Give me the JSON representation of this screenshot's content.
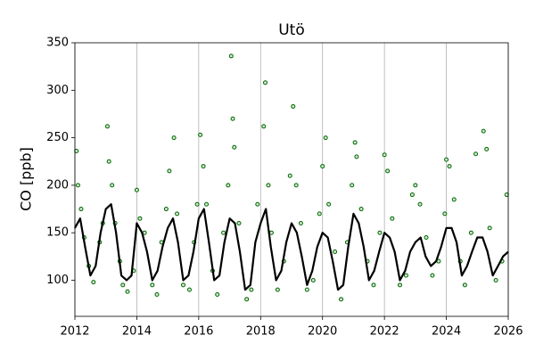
{
  "chart_data": {
    "type": "scatter",
    "title": "Utö",
    "y_label": "CO [ppb]",
    "xlim": [
      2012,
      2026
    ],
    "ylim": [
      62,
      350
    ],
    "xticks": [
      2012,
      2014,
      2016,
      2018,
      2020,
      2022,
      2024,
      2026
    ],
    "yticks": [
      100,
      150,
      200,
      250,
      300,
      350
    ],
    "grid_x": true,
    "series": [
      {
        "type": "scatter",
        "color": "#006400",
        "x": [
          2012.05,
          2012.1,
          2012.2,
          2012.3,
          2012.45,
          2012.6,
          2012.8,
          2012.9,
          2013.05,
          2013.1,
          2013.2,
          2013.3,
          2013.45,
          2013.55,
          2013.7,
          2013.9,
          2014.0,
          2014.1,
          2014.25,
          2014.5,
          2014.65,
          2014.8,
          2014.95,
          2015.05,
          2015.2,
          2015.3,
          2015.5,
          2015.7,
          2015.85,
          2015.95,
          2016.05,
          2016.15,
          2016.25,
          2016.45,
          2016.6,
          2016.8,
          2016.95,
          2017.05,
          2017.1,
          2017.15,
          2017.3,
          2017.55,
          2017.7,
          2017.9,
          2018.15,
          2018.1,
          2018.25,
          2018.35,
          2018.55,
          2018.75,
          2018.95,
          2019.05,
          2019.15,
          2019.3,
          2019.5,
          2019.7,
          2019.9,
          2020.0,
          2020.1,
          2020.2,
          2020.4,
          2020.6,
          2020.8,
          2020.95,
          2021.05,
          2021.1,
          2021.25,
          2021.45,
          2021.65,
          2021.85,
          2022.0,
          2022.1,
          2022.25,
          2022.5,
          2022.7,
          2022.9,
          2023.0,
          2023.15,
          2023.35,
          2023.55,
          2023.75,
          2023.95,
          2024.0,
          2024.1,
          2024.25,
          2024.45,
          2024.6,
          2024.8,
          2024.95,
          2025.2,
          2025.3,
          2025.4,
          2025.6,
          2025.8,
          2025.95
        ],
        "values": [
          236,
          200,
          175,
          145,
          115,
          98,
          140,
          160,
          262,
          225,
          200,
          160,
          120,
          95,
          88,
          110,
          195,
          165,
          150,
          95,
          85,
          140,
          175,
          215,
          250,
          170,
          95,
          90,
          140,
          180,
          253,
          220,
          180,
          110,
          85,
          150,
          200,
          336,
          270,
          240,
          160,
          80,
          90,
          180,
          308,
          262,
          200,
          150,
          90,
          120,
          210,
          283,
          200,
          160,
          90,
          100,
          170,
          220,
          250,
          180,
          130,
          80,
          140,
          200,
          245,
          230,
          175,
          120,
          95,
          150,
          232,
          215,
          165,
          95,
          105,
          190,
          200,
          180,
          145,
          105,
          120,
          170,
          227,
          220,
          185,
          120,
          95,
          150,
          233,
          257,
          238,
          155,
          100,
          120,
          190
        ]
      },
      {
        "type": "line",
        "color": "#000000",
        "x": [
          2012.0,
          2012.17,
          2012.33,
          2012.5,
          2012.67,
          2012.83,
          2013.0,
          2013.17,
          2013.33,
          2013.5,
          2013.67,
          2013.83,
          2014.0,
          2014.17,
          2014.33,
          2014.5,
          2014.67,
          2014.83,
          2015.0,
          2015.17,
          2015.33,
          2015.5,
          2015.67,
          2015.83,
          2016.0,
          2016.17,
          2016.33,
          2016.5,
          2016.67,
          2016.83,
          2017.0,
          2017.17,
          2017.33,
          2017.5,
          2017.67,
          2017.83,
          2018.0,
          2018.17,
          2018.33,
          2018.5,
          2018.67,
          2018.83,
          2019.0,
          2019.17,
          2019.33,
          2019.5,
          2019.67,
          2019.83,
          2020.0,
          2020.17,
          2020.33,
          2020.5,
          2020.67,
          2020.83,
          2021.0,
          2021.17,
          2021.33,
          2021.5,
          2021.67,
          2021.83,
          2022.0,
          2022.17,
          2022.33,
          2022.5,
          2022.67,
          2022.83,
          2023.0,
          2023.17,
          2023.33,
          2023.5,
          2023.67,
          2023.83,
          2024.0,
          2024.17,
          2024.33,
          2024.5,
          2024.67,
          2024.83,
          2025.0,
          2025.17,
          2025.33,
          2025.5,
          2025.67,
          2025.83,
          2026.0
        ],
        "values": [
          155,
          165,
          135,
          105,
          115,
          150,
          175,
          180,
          150,
          105,
          100,
          105,
          160,
          150,
          130,
          100,
          110,
          135,
          155,
          165,
          140,
          100,
          105,
          130,
          165,
          175,
          140,
          100,
          105,
          140,
          165,
          160,
          130,
          90,
          95,
          140,
          160,
          175,
          135,
          100,
          110,
          140,
          160,
          150,
          125,
          95,
          110,
          135,
          150,
          145,
          120,
          90,
          95,
          135,
          170,
          160,
          135,
          100,
          110,
          130,
          150,
          145,
          130,
          100,
          110,
          130,
          140,
          145,
          125,
          115,
          120,
          135,
          155,
          155,
          140,
          105,
          115,
          130,
          145,
          145,
          130,
          105,
          115,
          125,
          130
        ]
      }
    ]
  }
}
